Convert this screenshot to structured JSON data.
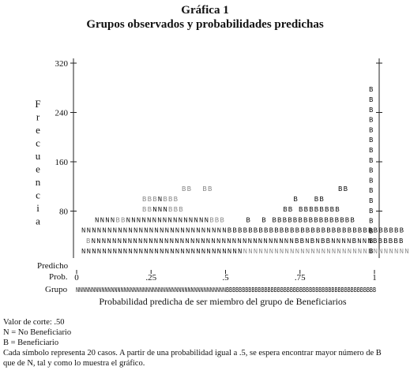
{
  "header": {
    "title": "Gráfica 1",
    "subtitle": "Grupos observados y probabilidades predichas"
  },
  "chart_data": {
    "type": "histogram",
    "ylabel": "Frecuencia",
    "xlabel": "Probabilidad predicha de ser miembro del grupo de Beneficiarios",
    "ylim": [
      0,
      320
    ],
    "yticks": [
      "80",
      "160",
      "240",
      "320"
    ],
    "xticks": [
      "0",
      ".25",
      ".5",
      ".75",
      "1"
    ],
    "row_labels": {
      "predicho": "Predicho",
      "prob": "Prob.",
      "grupo": "Grupo"
    },
    "grupo_row": "NNNNNNNNNNNNNNNNNNNNNNNNNNNNNNNNNNNNNNNNNNNNNNNBBBBBBBBBBBBBBBBBBBBBBBBBBBBBBBBBBBBBBBBBBBBBBB",
    "symbol_rows": [
      "NNNNNNNNNNNNNNNNNNNNNNNNNNNNNNNNNNNNNNNNNNNNNNNNNNNNNNNNNNNNNNNNNNNNNNNBBBBB",
      "BNNNNNNNNNNNNNNNNNNNNNNNNNNNNNNNNNNNNNNNBBNBNBBNNNNBNNNBBBBBB",
      "NNNNNNNNNNNNNNNNNNNNNNNNNNNNBBBBBBBBBBBBBBBBBBBBBBBBBBBBBBBBBB",
      "NNNNBBNNNNNNNNNNNNNNNNBBB    B  B BBBBBBBBBBBBBBBB",
      "BBNNNBBB                   BB BBBBBBBB",
      "BBBNBBB                      B   BB",
      "BB  BB                        BB"
    ],
    "right_column": "BBBBBBBBBBBBBBBBB",
    "annotations": {
      "cut": "Valor de corte: .50",
      "n_legend": "N = No Beneficiario",
      "b_legend": "B = Beneficiario",
      "note_line1": "Cada símbolo representa 20 casos. A partir de una probabilidad igual a .5, se espera encontrar mayor número de B",
      "note_line2": "que de N, tal y como lo muestra el gráfico."
    },
    "series_colors": {
      "N": "#111111",
      "B": "#111111",
      "faded": "#8a8a8a"
    }
  }
}
